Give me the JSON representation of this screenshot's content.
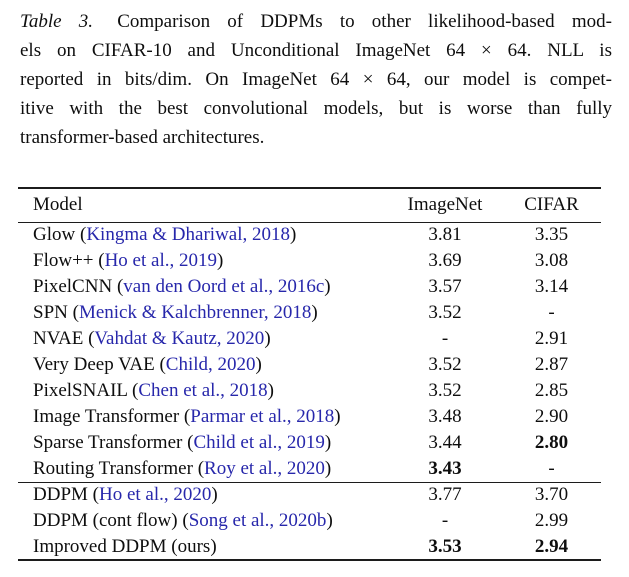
{
  "caption": {
    "label": "Table 3.",
    "lines": [
      "Comparison of DDPMs to other likelihood-based mod-",
      "els on CIFAR-10 and Unconditional ImageNet 64 × 64. NLL is",
      "reported in bits/dim. On ImageNet 64 × 64, our model is compet-",
      "itive with the best convolutional models, but is worse than fully",
      "transformer-based architectures."
    ]
  },
  "table": {
    "headers": {
      "model": "Model",
      "imagenet": "ImageNet",
      "cifar": "CIFAR"
    },
    "groups": [
      [
        {
          "model": "Glow",
          "cite": "Kingma & Dhariwal, 2018",
          "imagenet": "3.81",
          "cifar": "3.35",
          "imagenet_bold": false,
          "cifar_bold": false
        },
        {
          "model": "Flow++",
          "cite": "Ho et al., 2019",
          "imagenet": "3.69",
          "cifar": "3.08",
          "imagenet_bold": false,
          "cifar_bold": false
        },
        {
          "model": "PixelCNN",
          "cite": "van den Oord et al., 2016c",
          "imagenet": "3.57",
          "cifar": "3.14",
          "imagenet_bold": false,
          "cifar_bold": false
        },
        {
          "model": "SPN",
          "cite": "Menick & Kalchbrenner, 2018",
          "imagenet": "3.52",
          "cifar": "-",
          "imagenet_bold": false,
          "cifar_bold": false
        },
        {
          "model": "NVAE",
          "cite": "Vahdat & Kautz, 2020",
          "imagenet": "-",
          "cifar": "2.91",
          "imagenet_bold": false,
          "cifar_bold": false
        },
        {
          "model": "Very Deep VAE",
          "cite": "Child, 2020",
          "imagenet": "3.52",
          "cifar": "2.87",
          "imagenet_bold": false,
          "cifar_bold": false
        },
        {
          "model": "PixelSNAIL",
          "cite": "Chen et al., 2018",
          "imagenet": "3.52",
          "cifar": "2.85",
          "imagenet_bold": false,
          "cifar_bold": false
        },
        {
          "model": "Image Transformer",
          "cite": "Parmar et al., 2018",
          "imagenet": "3.48",
          "cifar": "2.90",
          "imagenet_bold": false,
          "cifar_bold": false
        },
        {
          "model": "Sparse Transformer",
          "cite": "Child et al., 2019",
          "imagenet": "3.44",
          "cifar": "2.80",
          "imagenet_bold": false,
          "cifar_bold": true
        },
        {
          "model": "Routing Transformer",
          "cite": "Roy et al., 2020",
          "imagenet": "3.43",
          "cifar": "-",
          "imagenet_bold": true,
          "cifar_bold": false
        }
      ],
      [
        {
          "model": "DDPM",
          "cite": "Ho et al., 2020",
          "imagenet": "3.77",
          "cifar": "3.70",
          "imagenet_bold": false,
          "cifar_bold": false
        },
        {
          "model": "DDPM (cont flow)",
          "cite": "Song et al., 2020b",
          "imagenet": "-",
          "cifar": "2.99",
          "imagenet_bold": false,
          "cifar_bold": false
        },
        {
          "model": "Improved DDPM (ours)",
          "cite": "",
          "imagenet": "3.53",
          "cifar": "2.94",
          "imagenet_bold": true,
          "cifar_bold": true
        }
      ]
    ]
  },
  "colors": {
    "citation_blue": "#2727ab",
    "text_black": "#0e0e0e"
  }
}
